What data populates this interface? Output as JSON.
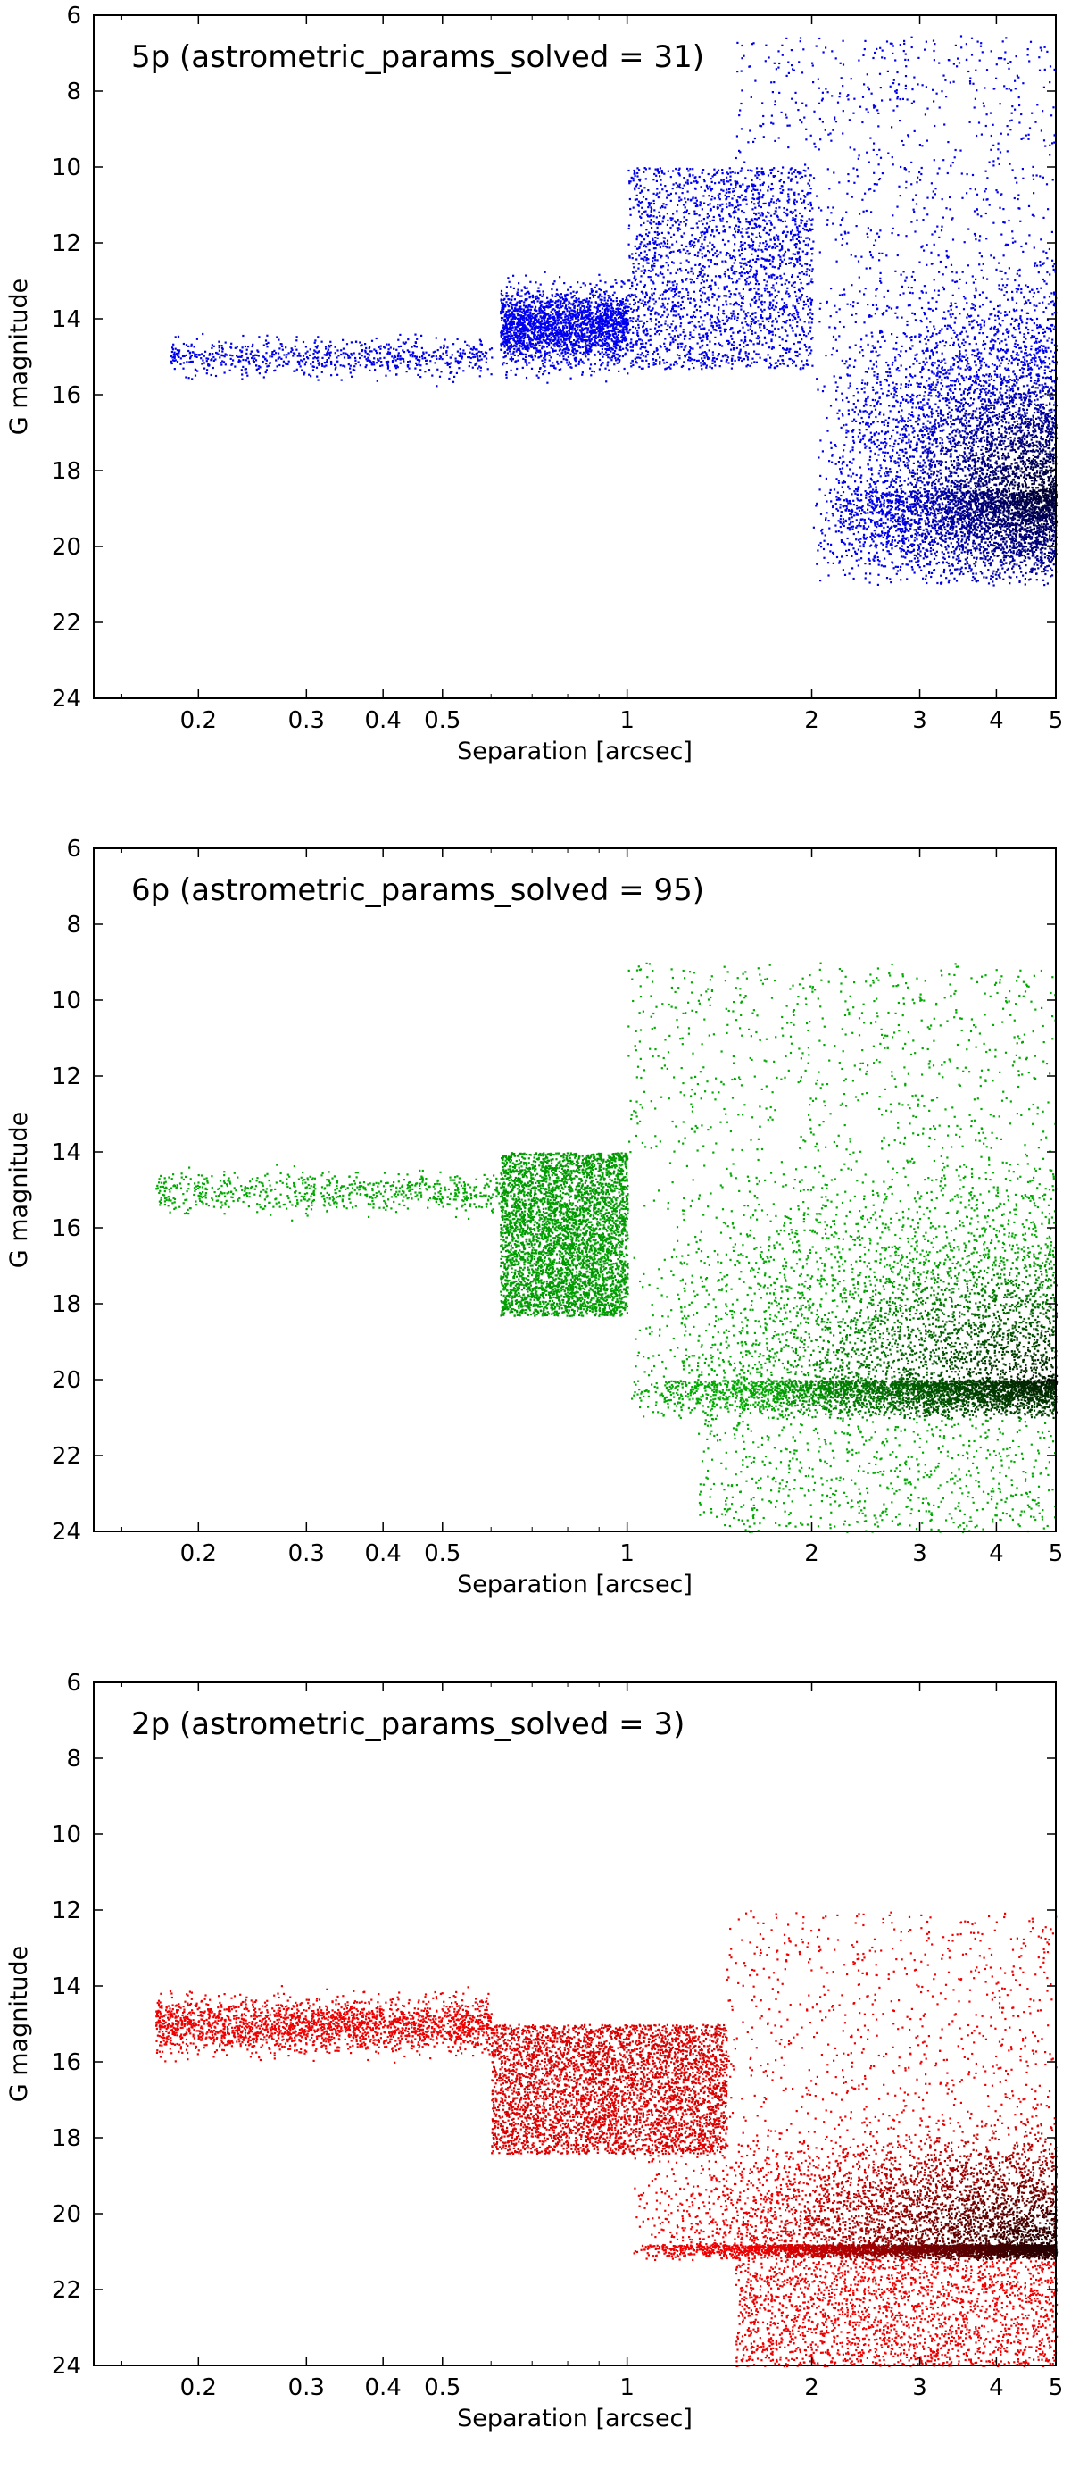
{
  "chart_data": [
    {
      "type": "scatter",
      "title": "5p (astrometric_params_solved = 31)",
      "xlabel": "Separation [arcsec]",
      "ylabel": "G magnitude",
      "xscale": "log",
      "xlim": [
        0.135,
        5
      ],
      "ylim": [
        24,
        6
      ],
      "y_inverted": true,
      "xticks": [
        0.2,
        0.3,
        0.4,
        0.5,
        1,
        2,
        3,
        4,
        5
      ],
      "xtick_labels": [
        "0.2",
        "0.3",
        "0.4",
        "0.5",
        "1",
        "2",
        "3",
        "4",
        "5"
      ],
      "yticks": [
        6,
        8,
        10,
        12,
        14,
        16,
        18,
        20,
        22,
        24
      ],
      "ytick_labels": [
        "6",
        "8",
        "10",
        "12",
        "14",
        "16",
        "18",
        "20",
        "22",
        "24"
      ],
      "grid": false,
      "legend": "none",
      "color": "#0000ee",
      "dense_color": "#000022",
      "regions": [
        {
          "x": [
            0.18,
            0.6
          ],
          "y_center": 15.0,
          "y_spread": 0.25,
          "density": "sparse"
        },
        {
          "x": [
            0.62,
            1.0
          ],
          "y_center": 14.2,
          "y_spread": 0.5,
          "density": "medium"
        },
        {
          "x": [
            1.0,
            2.0
          ],
          "y_range": [
            10,
            15.3
          ],
          "density": "medium"
        },
        {
          "x": [
            2.0,
            5.0
          ],
          "y_range": [
            12.5,
            21.0
          ],
          "density": "very dense",
          "peak": [
            4.8,
            18.5
          ]
        },
        {
          "x": [
            1.5,
            5.0
          ],
          "y_range": [
            6.5,
            12.5
          ],
          "density": "sparse"
        }
      ]
    },
    {
      "type": "scatter",
      "title": "6p (astrometric_params_solved = 95)",
      "xlabel": "Separation [arcsec]",
      "ylabel": "G magnitude",
      "xscale": "log",
      "xlim": [
        0.135,
        5
      ],
      "ylim": [
        24,
        6
      ],
      "y_inverted": true,
      "xticks": [
        0.2,
        0.3,
        0.4,
        0.5,
        1,
        2,
        3,
        4,
        5
      ],
      "xtick_labels": [
        "0.2",
        "0.3",
        "0.4",
        "0.5",
        "1",
        "2",
        "3",
        "4",
        "5"
      ],
      "yticks": [
        6,
        8,
        10,
        12,
        14,
        16,
        18,
        20,
        22,
        24
      ],
      "ytick_labels": [
        "6",
        "8",
        "10",
        "12",
        "14",
        "16",
        "18",
        "20",
        "22",
        "24"
      ],
      "grid": false,
      "legend": "none",
      "color": "#00aa00",
      "dense_color": "#001500",
      "regions": [
        {
          "x": [
            0.17,
            0.62
          ],
          "y_center": 15.05,
          "y_spread": 0.25,
          "density": "sparse"
        },
        {
          "x": [
            0.62,
            1.0
          ],
          "y_range": [
            14.0,
            18.3
          ],
          "density": "dense"
        },
        {
          "x": [
            1.0,
            5.0
          ],
          "y_range": [
            14.0,
            21.0
          ],
          "density": "very dense",
          "peak": [
            4.8,
            20.0
          ]
        },
        {
          "x": [
            1.0,
            5.0
          ],
          "y_range": [
            9.0,
            14.0
          ],
          "density": "sparse"
        },
        {
          "x": [
            1.3,
            5.0
          ],
          "y_range": [
            21.0,
            24.0
          ],
          "density": "sparse"
        }
      ]
    },
    {
      "type": "scatter",
      "title": "2p (astrometric_params_solved = 3)",
      "xlabel": "Separation [arcsec]",
      "ylabel": "G magnitude",
      "xscale": "log",
      "xlim": [
        0.135,
        5
      ],
      "ylim": [
        24,
        6
      ],
      "y_inverted": true,
      "xticks": [
        0.2,
        0.3,
        0.4,
        0.5,
        1,
        2,
        3,
        4,
        5
      ],
      "xtick_labels": [
        "0.2",
        "0.3",
        "0.4",
        "0.5",
        "1",
        "2",
        "3",
        "4",
        "5"
      ],
      "yticks": [
        6,
        8,
        10,
        12,
        14,
        16,
        18,
        20,
        22,
        24
      ],
      "ytick_labels": [
        "6",
        "8",
        "10",
        "12",
        "14",
        "16",
        "18",
        "20",
        "22",
        "24"
      ],
      "grid": false,
      "legend": "none",
      "color": "#ee0000",
      "dense_color": "#150000",
      "regions": [
        {
          "x": [
            0.17,
            0.6
          ],
          "y_center": 15.0,
          "y_spread": 0.35,
          "density": "medium"
        },
        {
          "x": [
            0.6,
            1.45
          ],
          "y_range": [
            15.0,
            18.4
          ],
          "density": "dense"
        },
        {
          "x": [
            1.0,
            5.0
          ],
          "y_range": [
            17.5,
            21.2
          ],
          "density": "very dense",
          "peak": [
            4.8,
            20.8
          ]
        },
        {
          "x": [
            1.45,
            5.0
          ],
          "y_range": [
            12.0,
            17.5
          ],
          "density": "sparse"
        },
        {
          "x": [
            1.5,
            5.0
          ],
          "y_range": [
            21.2,
            24.0
          ],
          "density": "medium"
        }
      ]
    }
  ]
}
